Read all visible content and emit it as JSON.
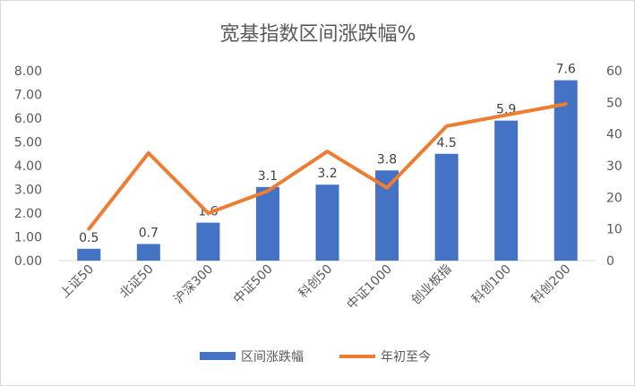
{
  "chart_data": {
    "type": "bar",
    "title": "宽基指数区间涨跌幅%",
    "categories": [
      "上证50",
      "北证50",
      "沪深300",
      "中证500",
      "科创50",
      "中证1000",
      "创业板指",
      "科创100",
      "科创200"
    ],
    "series": [
      {
        "name": "区间涨跌幅",
        "type": "bar",
        "axis": "left",
        "color": "#4472C4",
        "values": [
          0.5,
          0.7,
          1.6,
          3.1,
          3.2,
          3.8,
          4.5,
          5.9,
          7.6
        ],
        "labels": [
          "0.5",
          "0.7",
          "1.6",
          "3.1",
          "3.2",
          "3.8",
          "4.5",
          "5.9",
          "7.6"
        ]
      },
      {
        "name": "年初至今",
        "type": "line",
        "axis": "right",
        "color": "#ED7D31",
        "values": [
          10,
          34,
          15,
          22,
          34.5,
          23,
          42.5,
          46,
          49.5
        ]
      }
    ],
    "y_left": {
      "min": 0,
      "max": 8,
      "step": 1,
      "ticks": [
        "0.00",
        "1.00",
        "2.00",
        "3.00",
        "4.00",
        "5.00",
        "6.00",
        "7.00",
        "8.00"
      ]
    },
    "y_right": {
      "min": 0,
      "max": 60,
      "step": 10,
      "ticks": [
        "0",
        "10",
        "20",
        "30",
        "40",
        "50",
        "60"
      ]
    },
    "grid": false,
    "legend": "bottom"
  }
}
